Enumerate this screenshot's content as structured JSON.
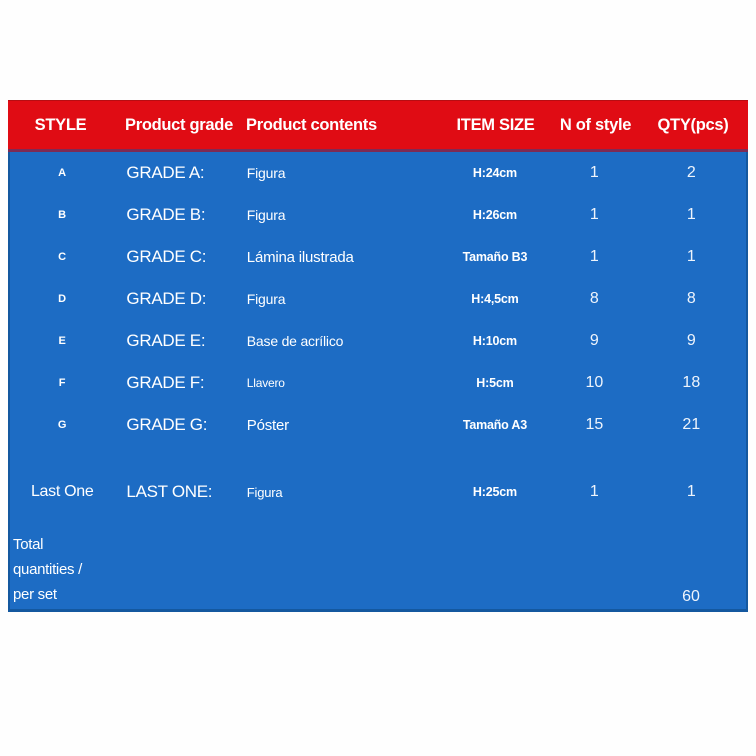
{
  "table": {
    "headers": [
      "STYLE",
      "Product grade",
      "Product contents",
      "ITEM SIZE",
      "N of style",
      "QTY(pcs)"
    ],
    "rows": [
      {
        "style": "A",
        "grade": "GRADE A:",
        "contents": "Figura",
        "size": "H:24cm",
        "n_of_style": "1",
        "qty": "2"
      },
      {
        "style": "B",
        "grade": "GRADE B:",
        "contents": "Figura",
        "size": "H:26cm",
        "n_of_style": "1",
        "qty": "1"
      },
      {
        "style": "C",
        "grade": "GRADE C:",
        "contents": "Lámina ilustrada",
        "size": "Tamaño B3",
        "n_of_style": "1",
        "qty": "1"
      },
      {
        "style": "D",
        "grade": "GRADE D:",
        "contents": "Figura",
        "size": "H:4,5cm",
        "n_of_style": "8",
        "qty": "8"
      },
      {
        "style": "E",
        "grade": "GRADE E:",
        "contents": "Base de acrílico",
        "size": "H:10cm",
        "n_of_style": "9",
        "qty": "9"
      },
      {
        "style": "F",
        "grade": "GRADE F:",
        "contents": "Llavero",
        "size": "H:5cm",
        "n_of_style": "10",
        "qty": "18"
      },
      {
        "style": "G",
        "grade": "GRADE G:",
        "contents": "Póster",
        "size": "Tamaño A3",
        "n_of_style": "15",
        "qty": "21"
      },
      {
        "style": "Last One",
        "grade": "LAST ONE:",
        "contents": "Figura",
        "size": "H:25cm",
        "n_of_style": "1",
        "qty": "1"
      }
    ],
    "footer": {
      "lines": [
        "Total",
        "quantities /",
        "per set"
      ],
      "total": "60"
    }
  },
  "colors": {
    "header_bg": "#e00c14",
    "body_bg": "#1d6cc4",
    "header_text": "#ffffff",
    "body_text": "#ffffff"
  }
}
